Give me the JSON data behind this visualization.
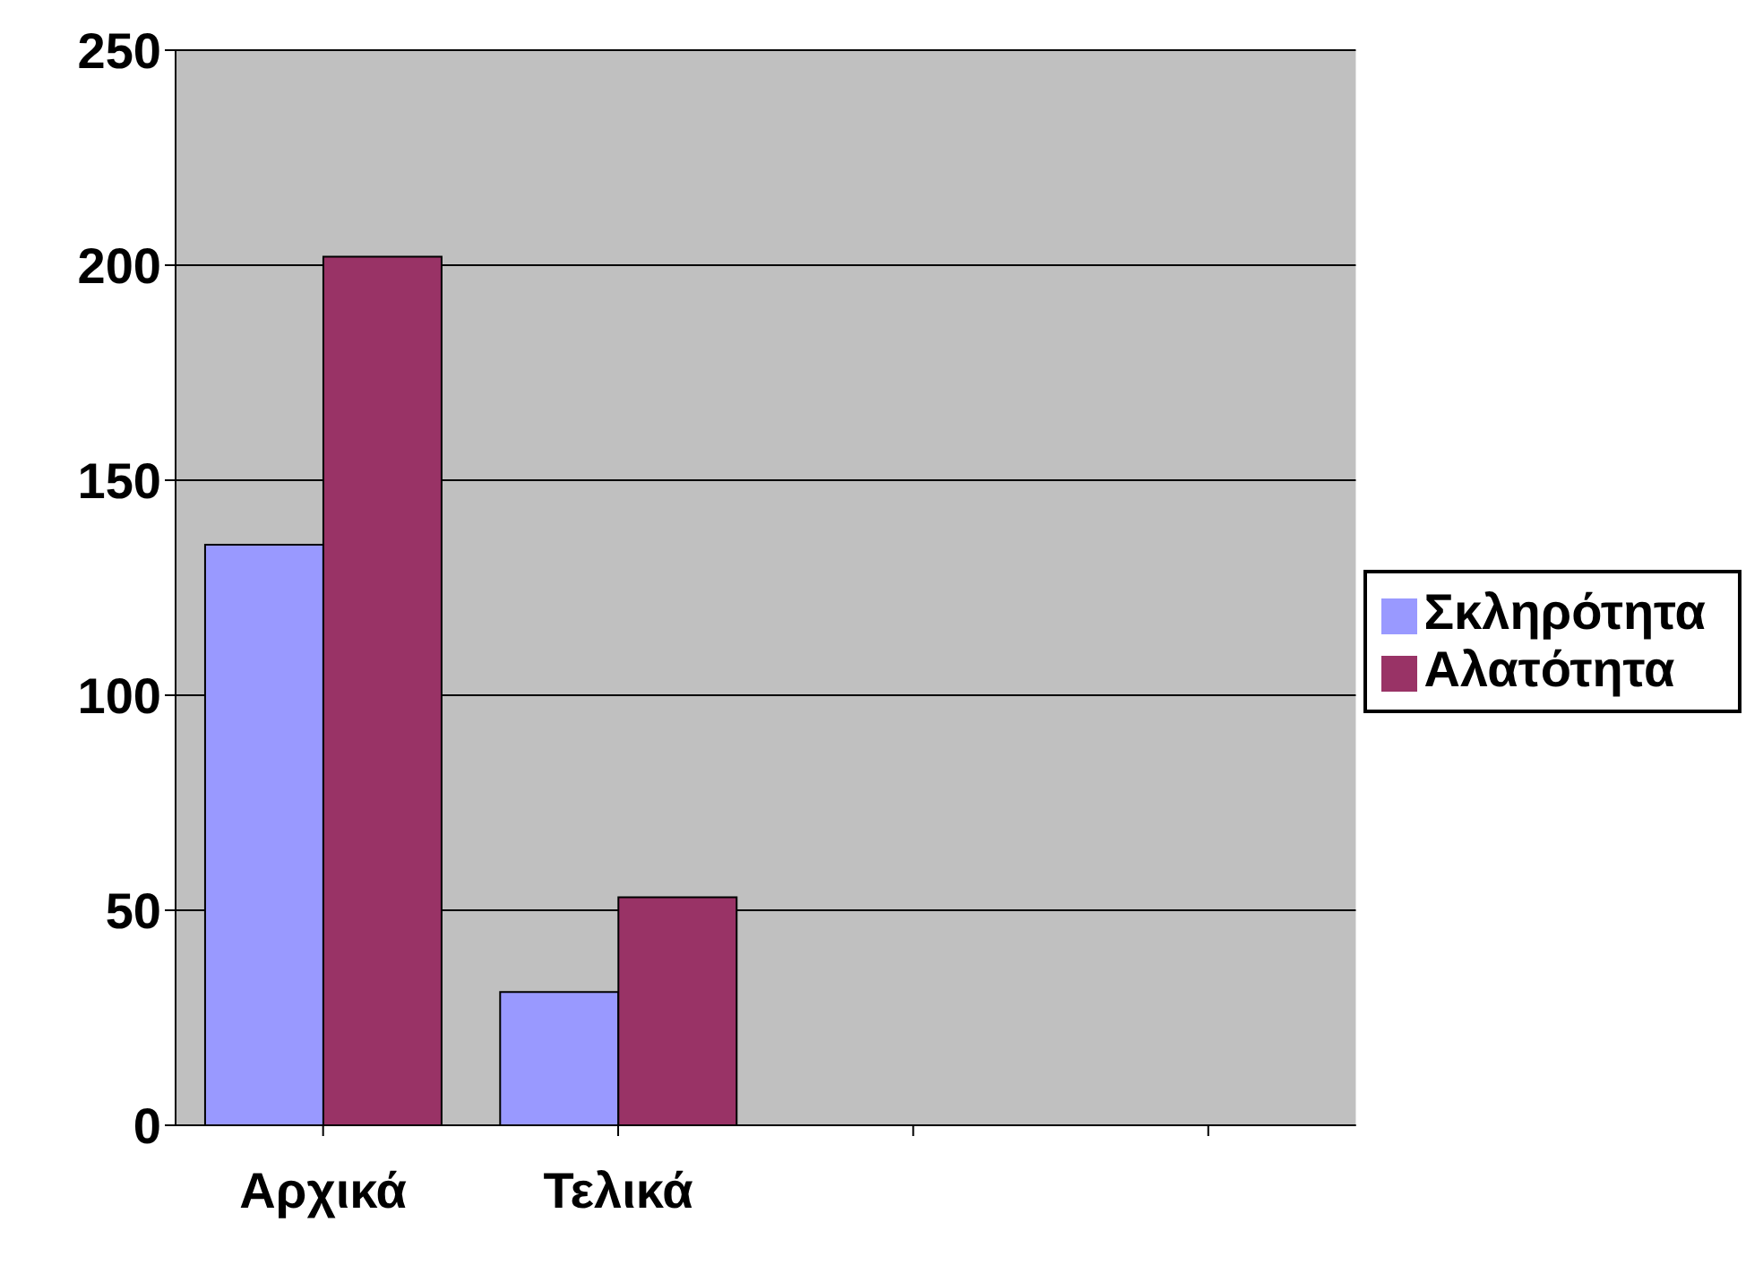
{
  "chart_data": {
    "type": "bar",
    "categories": [
      "Αρχικά",
      "Τελικά",
      null,
      null
    ],
    "series": [
      {
        "name": "Σκληρότητα",
        "color": "#9999ff",
        "values": [
          135,
          31,
          null,
          null
        ]
      },
      {
        "name": "Αλατότητα",
        "color": "#993366",
        "values": [
          202,
          53,
          null,
          null
        ]
      }
    ],
    "ylim": [
      0,
      250
    ],
    "yticks": [
      0,
      50,
      100,
      150,
      200,
      250
    ],
    "grid": "y",
    "legend": "right"
  }
}
